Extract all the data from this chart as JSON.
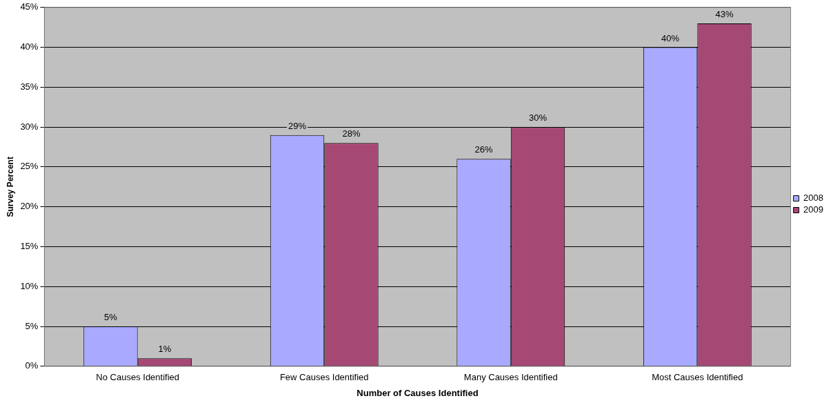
{
  "chart_data": {
    "type": "bar",
    "xlabel": "Number of Causes Identified",
    "ylabel": "Survey Percent",
    "categories": [
      "No Causes Identified",
      "Few Causes Identified",
      "Many Causes Identified",
      "Most Causes Identified"
    ],
    "series": [
      {
        "name": "2008",
        "color": "#a9a9ff",
        "values": [
          5,
          29,
          26,
          40
        ],
        "value_labels": [
          "5%",
          "29%",
          "26%",
          "40%"
        ]
      },
      {
        "name": "2009",
        "color": "#a64874",
        "values": [
          1,
          28,
          30,
          43
        ],
        "value_labels": [
          "1%",
          "28%",
          "30%",
          "43%"
        ]
      }
    ],
    "ylim": [
      0,
      45
    ],
    "yticks": [
      {
        "value": 0,
        "label": "0%"
      },
      {
        "value": 5,
        "label": "5%"
      },
      {
        "value": 10,
        "label": "10%"
      },
      {
        "value": 15,
        "label": "15%"
      },
      {
        "value": 20,
        "label": "20%"
      },
      {
        "value": 25,
        "label": "25%"
      },
      {
        "value": 30,
        "label": "30%"
      },
      {
        "value": 35,
        "label": "35%"
      },
      {
        "value": 40,
        "label": "40%"
      },
      {
        "value": 45,
        "label": "45%"
      }
    ],
    "grid": "y",
    "legend": "right"
  }
}
